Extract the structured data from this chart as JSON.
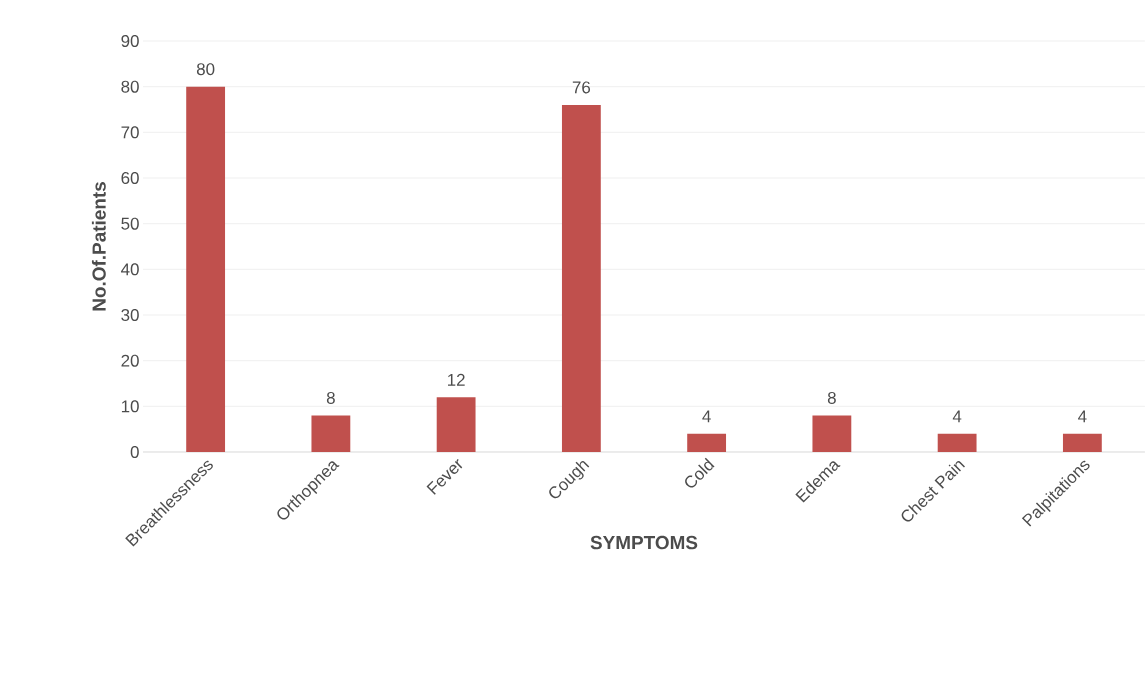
{
  "chart_data": {
    "type": "bar",
    "xlabel": "SYMPTOMS",
    "ylabel": "No.Of.Patients",
    "categories": [
      "Breathlessness",
      "Orthopnea",
      "Fever",
      "Cough",
      "Cold",
      "Edema",
      "Chest Pain",
      "Palpitations"
    ],
    "values": [
      80,
      8,
      12,
      76,
      4,
      8,
      4,
      4
    ],
    "color": "#c0504d",
    "ylim": [
      0,
      90
    ],
    "yticks": [
      0,
      10,
      20,
      30,
      40,
      50,
      60,
      70,
      80,
      90
    ],
    "grid": "y",
    "data_labels": true
  }
}
